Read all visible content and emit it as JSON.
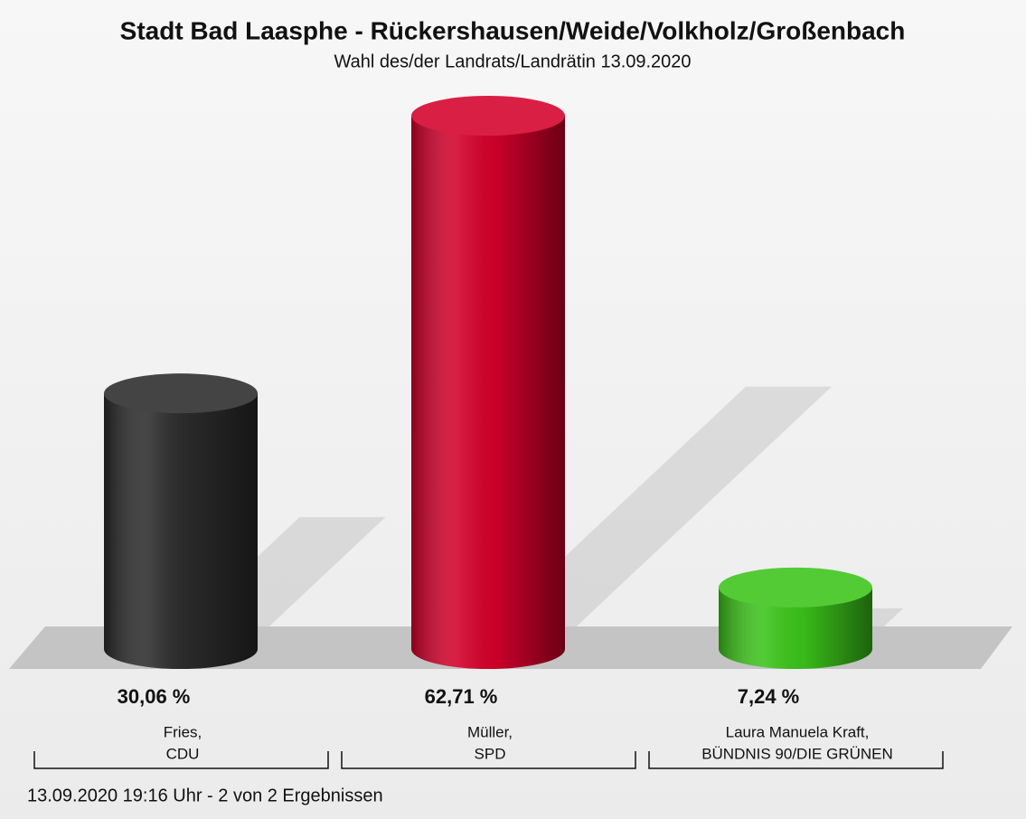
{
  "chart_data": {
    "type": "bar",
    "title": "Stadt Bad Laasphe - Rückershausen/Weide/Volkholz/Großenbach",
    "subtitle": "Wahl des/der Landrats/Landrätin 13.09.2020",
    "categories": [
      [
        "Fries,",
        "CDU"
      ],
      [
        "Müller,",
        "SPD"
      ],
      [
        "Laura Manuela Kraft,",
        "BÜNDNIS 90/DIE GRÜNEN"
      ]
    ],
    "values": [
      30.06,
      62.71,
      7.24
    ],
    "value_labels": [
      "30,06 %",
      "62,71 %",
      "7,24 %"
    ],
    "colors": [
      "#2b2b2b",
      "#d4002a",
      "#3cc41a"
    ],
    "footer": "13.09.2020 19:16 Uhr - 2 von 2 Ergebnissen"
  }
}
